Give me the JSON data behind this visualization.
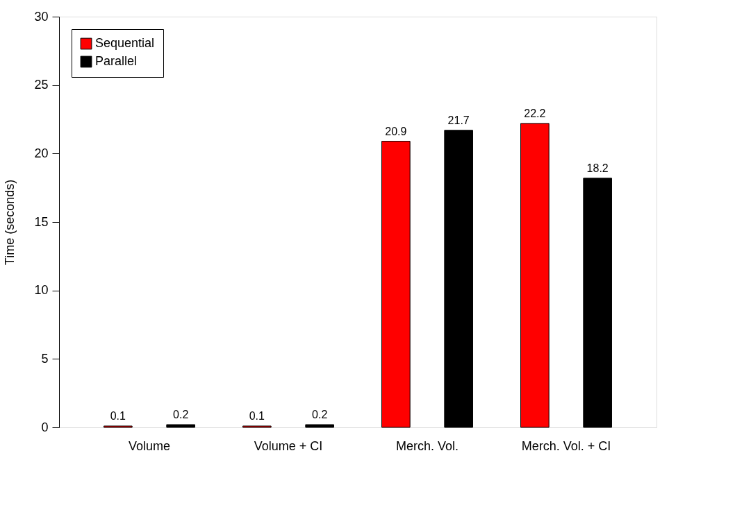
{
  "chart_data": {
    "type": "bar",
    "ylabel": "Time (seconds)",
    "categories": [
      "Volume",
      "Volume + CI",
      "Merch. Vol.",
      "Merch. Vol. + CI"
    ],
    "series": [
      {
        "name": "Sequential",
        "color": "#ff0000",
        "values": [
          0.1,
          0.1,
          20.9,
          22.2
        ]
      },
      {
        "name": "Parallel",
        "color": "#000000",
        "values": [
          0.2,
          0.2,
          21.7,
          18.2
        ]
      }
    ],
    "ylim": [
      0,
      30
    ],
    "yticks": [
      0,
      5,
      10,
      15,
      20,
      25,
      30
    ],
    "grid": false,
    "legend": "top left",
    "data_labels": true
  }
}
